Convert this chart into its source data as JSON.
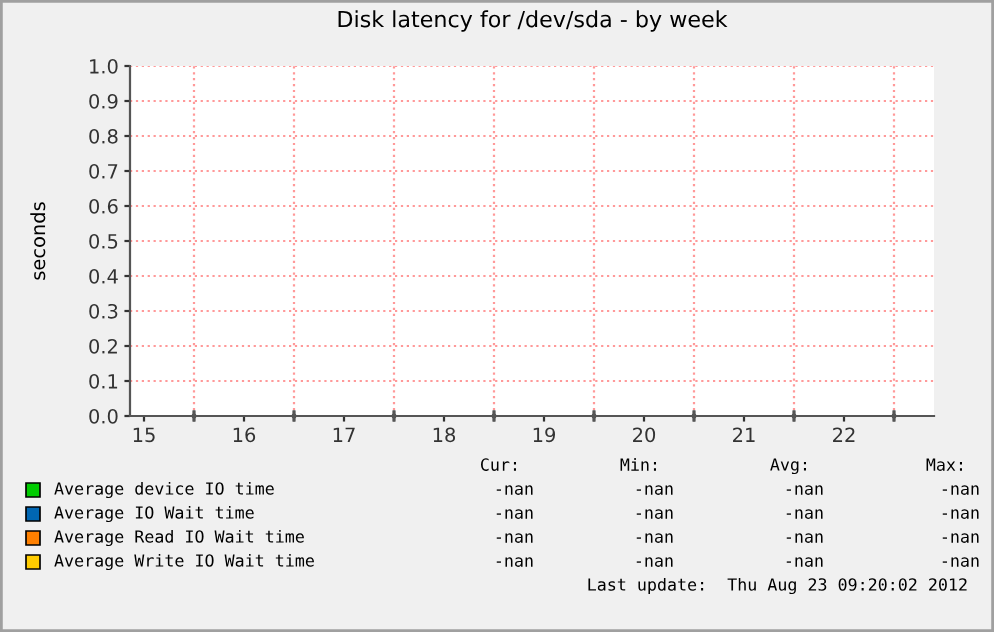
{
  "chart_data": {
    "type": "line",
    "title": "Disk latency for /dev/sda - by week",
    "ylabel": "seconds",
    "categories": [
      "15",
      "16",
      "17",
      "18",
      "19",
      "20",
      "21",
      "22"
    ],
    "series": [
      {
        "name": "Average device IO time",
        "color": "#00cc00",
        "values": [
          null,
          null,
          null,
          null,
          null,
          null,
          null,
          null
        ]
      },
      {
        "name": "Average IO Wait time",
        "color": "#0066b3",
        "values": [
          null,
          null,
          null,
          null,
          null,
          null,
          null,
          null
        ]
      },
      {
        "name": "Average Read IO Wait time",
        "color": "#ff8000",
        "values": [
          null,
          null,
          null,
          null,
          null,
          null,
          null,
          null
        ]
      },
      {
        "name": "Average Write IO Wait time",
        "color": "#ffcc00",
        "values": [
          null,
          null,
          null,
          null,
          null,
          null,
          null,
          null
        ]
      }
    ],
    "ylim": [
      0,
      1.0
    ],
    "yticks": [
      {
        "value": 0,
        "label": "0.0"
      },
      {
        "value": 0.1,
        "label": "0.1"
      },
      {
        "value": 0.2,
        "label": "0.2"
      },
      {
        "value": 0.3,
        "label": "0.3"
      },
      {
        "value": 0.4,
        "label": "0.4"
      },
      {
        "value": 0.5,
        "label": "0.5"
      },
      {
        "value": 0.6,
        "label": "0.6"
      },
      {
        "value": 0.7,
        "label": "0.7"
      },
      {
        "value": 0.8,
        "label": "0.8"
      },
      {
        "value": 0.9,
        "label": "0.9"
      },
      {
        "value": 1.0,
        "label": "1.0"
      }
    ],
    "grid": true,
    "legend": "bottom",
    "annotations": [
      "Cur:",
      "Min:",
      "Avg:",
      "Max:",
      "-nan",
      "-nan",
      "-nan",
      "-nan",
      "-nan",
      "-nan",
      "-nan",
      "-nan",
      "-nan",
      "-nan",
      "-nan",
      "-nan",
      "-nan",
      "-nan",
      "-nan",
      "-nan",
      "Last update:  Thu Aug 23 09:20:02 2012"
    ]
  }
}
